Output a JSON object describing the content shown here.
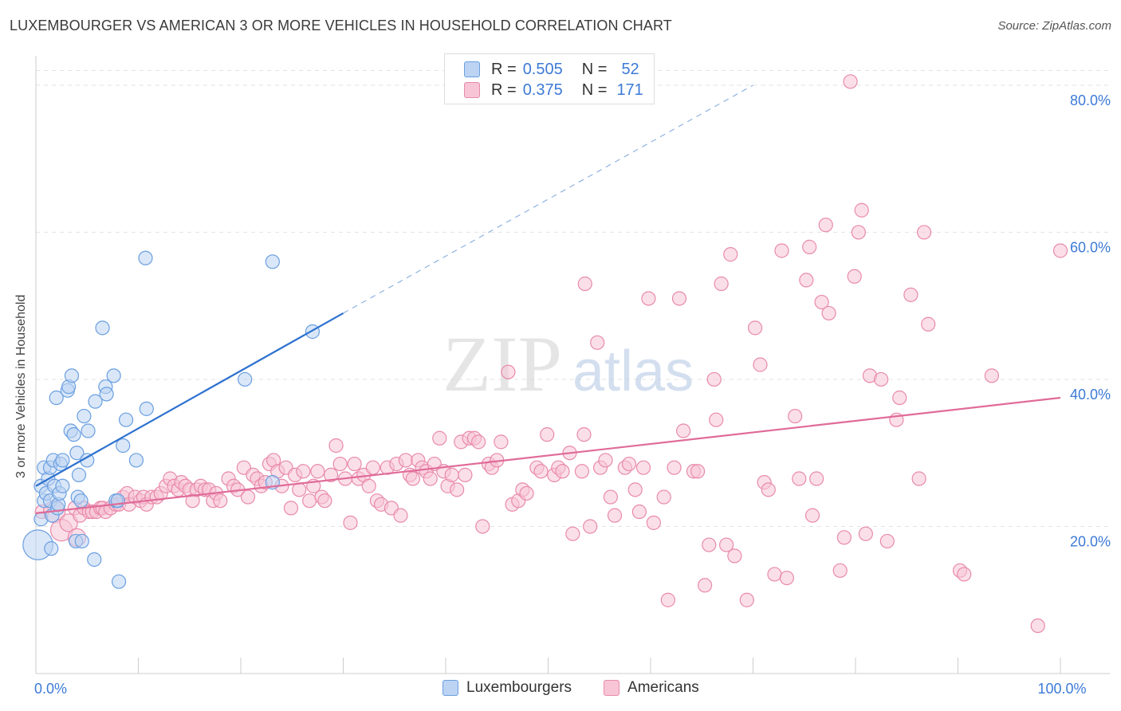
{
  "title": "LUXEMBOURGER VS AMERICAN 3 OR MORE VEHICLES IN HOUSEHOLD CORRELATION CHART",
  "source": "Source: ZipAtlas.com",
  "watermark": {
    "zip": "ZIP",
    "atlas": "atlas"
  },
  "legend_top": {
    "rows": [
      {
        "r_label": "R =",
        "r_value": "0.505",
        "n_label": "N =",
        "n_value": "52",
        "color": "#6a9fe0",
        "fill": "#bcd3f3"
      },
      {
        "r_label": "R =",
        "r_value": "0.375",
        "n_label": "N =",
        "n_value": "171",
        "color": "#e88aab",
        "fill": "#f7c5d6"
      }
    ]
  },
  "legend_bottom": {
    "items": [
      {
        "label": "Luxembourgers",
        "color": "#6a9fe0",
        "fill": "#bcd3f3"
      },
      {
        "label": "Americans",
        "color": "#e88aab",
        "fill": "#f7c5d6"
      }
    ]
  },
  "chart_data": {
    "type": "scatter",
    "title": "LUXEMBOURGER VS AMERICAN 3 OR MORE VEHICLES IN HOUSEHOLD CORRELATION CHART",
    "xlabel": "",
    "ylabel": "3 or more Vehicles in Household",
    "xlim": [
      0,
      100
    ],
    "ylim": [
      0,
      84
    ],
    "x_tick_labels": [
      {
        "value": 0,
        "label": "0.0%"
      },
      {
        "value": 100,
        "label": "100.0%"
      }
    ],
    "y_tick_labels": [
      {
        "value": 20,
        "label": "20.0%"
      },
      {
        "value": 40,
        "label": "40.0%"
      },
      {
        "value": 60,
        "label": "60.0%"
      },
      {
        "value": 80,
        "label": "80.0%"
      }
    ],
    "grid": true,
    "legend_position": "bottom",
    "series": [
      {
        "name": "Luxembourgers",
        "color": "#6a9fe0",
        "fill": "#bcd3f3",
        "trend": {
          "x": [
            0,
            30
          ],
          "y": [
            25.5,
            49
          ],
          "dashed_extension_to": [
            70,
            80
          ]
        },
        "points": [
          [
            0.2,
            17.5,
            2.2
          ],
          [
            0.5,
            21,
            1
          ],
          [
            0.5,
            25.5,
            1
          ],
          [
            0.8,
            23.5,
            1
          ],
          [
            0.8,
            28,
            1
          ],
          [
            1.0,
            24.5,
            1
          ],
          [
            1.2,
            26.5,
            1
          ],
          [
            1.4,
            23.5,
            1
          ],
          [
            1.4,
            28,
            1
          ],
          [
            1.5,
            17,
            1
          ],
          [
            1.6,
            21.5,
            1
          ],
          [
            1.7,
            29,
            1
          ],
          [
            1.8,
            25.5,
            1
          ],
          [
            2.0,
            37.5,
            1
          ],
          [
            2.1,
            22.5,
            1
          ],
          [
            2.2,
            23,
            1
          ],
          [
            2.3,
            24.5,
            1
          ],
          [
            2.4,
            28.5,
            1
          ],
          [
            2.6,
            25.5,
            1
          ],
          [
            2.6,
            29,
            1
          ],
          [
            3.1,
            38.5,
            1
          ],
          [
            3.2,
            39,
            1
          ],
          [
            3.4,
            33,
            1
          ],
          [
            3.5,
            40.5,
            1
          ],
          [
            3.7,
            32.5,
            1
          ],
          [
            3.9,
            18,
            1
          ],
          [
            4.0,
            30,
            1
          ],
          [
            4.1,
            24,
            1
          ],
          [
            4.2,
            27,
            1
          ],
          [
            4.4,
            23.5,
            1
          ],
          [
            4.5,
            18,
            1
          ],
          [
            4.7,
            35,
            1
          ],
          [
            5.0,
            29,
            1
          ],
          [
            5.1,
            33,
            1
          ],
          [
            5.7,
            15.5,
            1
          ],
          [
            5.8,
            37,
            1
          ],
          [
            6.5,
            47,
            1
          ],
          [
            6.8,
            39,
            1
          ],
          [
            6.9,
            38,
            1
          ],
          [
            7.6,
            40.5,
            1
          ],
          [
            7.8,
            23.5,
            1
          ],
          [
            8.1,
            12.5,
            1
          ],
          [
            8.5,
            31,
            1
          ],
          [
            8.8,
            34.5,
            1
          ],
          [
            9.8,
            29,
            1
          ],
          [
            10.8,
            36,
            1
          ],
          [
            10.7,
            56.5,
            1
          ],
          [
            20.4,
            40,
            1
          ],
          [
            23.1,
            56,
            1
          ],
          [
            23.1,
            26,
            1
          ],
          [
            27.0,
            46.5,
            1
          ],
          [
            8.0,
            23.5,
            1
          ]
        ]
      },
      {
        "name": "Americans",
        "color": "#e88aab",
        "fill": "#f7c5d6",
        "trend": {
          "x": [
            0,
            100
          ],
          "y": [
            21.8,
            37.5
          ]
        },
        "points": [
          [
            0.6,
            22,
            1
          ],
          [
            1.8,
            22,
            1.6
          ],
          [
            2.5,
            19.5,
            1.6
          ],
          [
            3.2,
            20.5,
            1.3
          ],
          [
            3.8,
            22.5,
            1
          ],
          [
            4.0,
            18.5,
            1.3
          ],
          [
            4.3,
            21.5,
            1
          ],
          [
            4.7,
            22.5,
            1
          ],
          [
            5.2,
            22,
            1
          ],
          [
            5.5,
            22,
            1
          ],
          [
            5.9,
            22,
            1
          ],
          [
            6.3,
            22.5,
            1
          ],
          [
            6.5,
            22.5,
            1
          ],
          [
            6.8,
            22,
            1
          ],
          [
            7.3,
            22.5,
            1
          ],
          [
            7.8,
            23,
            1
          ],
          [
            8.1,
            23,
            1
          ],
          [
            8.5,
            24,
            1
          ],
          [
            8.9,
            24.5,
            1
          ],
          [
            9.1,
            23,
            1
          ],
          [
            9.7,
            24,
            1
          ],
          [
            10.2,
            23.5,
            1
          ],
          [
            10.5,
            24,
            1
          ],
          [
            10.8,
            23,
            1
          ],
          [
            11.3,
            24,
            1
          ],
          [
            11.8,
            24,
            1
          ],
          [
            12.2,
            24.5,
            1
          ],
          [
            12.7,
            25.5,
            1
          ],
          [
            13.1,
            26.5,
            1
          ],
          [
            13.5,
            25.5,
            1
          ],
          [
            13.9,
            25,
            1
          ],
          [
            14.2,
            26,
            1
          ],
          [
            14.6,
            25.5,
            1
          ],
          [
            15.0,
            25,
            1
          ],
          [
            15.3,
            23.5,
            1
          ],
          [
            15.7,
            25,
            1
          ],
          [
            16.1,
            25.5,
            1
          ],
          [
            16.5,
            25,
            1
          ],
          [
            16.9,
            25,
            1
          ],
          [
            17.3,
            23.5,
            1
          ],
          [
            17.6,
            24.5,
            1
          ],
          [
            18.0,
            23.5,
            1
          ],
          [
            18.8,
            26.5,
            1
          ],
          [
            19.3,
            25.5,
            1
          ],
          [
            19.7,
            25,
            1
          ],
          [
            20.3,
            28,
            1
          ],
          [
            20.7,
            24,
            1
          ],
          [
            21.2,
            27,
            1
          ],
          [
            21.6,
            26.5,
            1
          ],
          [
            22.0,
            25.5,
            1
          ],
          [
            22.4,
            26,
            1
          ],
          [
            22.8,
            28.5,
            1
          ],
          [
            23.2,
            29,
            1
          ],
          [
            23.6,
            27.5,
            1
          ],
          [
            24.0,
            25.5,
            1
          ],
          [
            24.4,
            28,
            1
          ],
          [
            24.9,
            22.5,
            1
          ],
          [
            25.3,
            27,
            1
          ],
          [
            25.7,
            25,
            1
          ],
          [
            26.1,
            27.5,
            1
          ],
          [
            26.7,
            23.5,
            1
          ],
          [
            27.1,
            25.5,
            1
          ],
          [
            27.5,
            27.5,
            1
          ],
          [
            27.9,
            24,
            1
          ],
          [
            28.2,
            23.5,
            1
          ],
          [
            28.8,
            27,
            1
          ],
          [
            29.3,
            31,
            1
          ],
          [
            29.7,
            28.5,
            1
          ],
          [
            30.2,
            26.5,
            1
          ],
          [
            30.7,
            20.5,
            1
          ],
          [
            31.1,
            28.5,
            1
          ],
          [
            31.5,
            26.5,
            1
          ],
          [
            32.0,
            27,
            1
          ],
          [
            32.5,
            25.5,
            1
          ],
          [
            32.9,
            28,
            1
          ],
          [
            33.3,
            23.5,
            1
          ],
          [
            33.7,
            23,
            1
          ],
          [
            34.3,
            28,
            1
          ],
          [
            34.7,
            22.5,
            1
          ],
          [
            35.2,
            28.5,
            1
          ],
          [
            35.6,
            21.5,
            1
          ],
          [
            36.1,
            29,
            1
          ],
          [
            36.5,
            27,
            1
          ],
          [
            36.8,
            26.5,
            1
          ],
          [
            37.3,
            29,
            1
          ],
          [
            37.7,
            28,
            1
          ],
          [
            38.1,
            27.5,
            1
          ],
          [
            38.5,
            26.5,
            1
          ],
          [
            38.9,
            28.5,
            1
          ],
          [
            39.4,
            32,
            1
          ],
          [
            39.8,
            27.5,
            1
          ],
          [
            40.2,
            25.5,
            1
          ],
          [
            40.6,
            27,
            1
          ],
          [
            41.1,
            25,
            1
          ],
          [
            41.5,
            31.5,
            1
          ],
          [
            41.9,
            27,
            1
          ],
          [
            42.3,
            32,
            1
          ],
          [
            42.8,
            32,
            1
          ],
          [
            43.2,
            31.5,
            1
          ],
          [
            43.6,
            20,
            1
          ],
          [
            44.2,
            28.5,
            1
          ],
          [
            44.5,
            28,
            1
          ],
          [
            45.0,
            29,
            1
          ],
          [
            45.4,
            31.5,
            1
          ],
          [
            46.1,
            41,
            1
          ],
          [
            46.5,
            23,
            1
          ],
          [
            47.1,
            23.5,
            1
          ],
          [
            47.5,
            25,
            1
          ],
          [
            47.9,
            24.5,
            1
          ],
          [
            48.9,
            28,
            1
          ],
          [
            49.3,
            27.5,
            1
          ],
          [
            49.9,
            32.5,
            1
          ],
          [
            50.6,
            27,
            1
          ],
          [
            51.0,
            28,
            1
          ],
          [
            51.4,
            27.5,
            1
          ],
          [
            52.1,
            30,
            1
          ],
          [
            52.4,
            19,
            1
          ],
          [
            53.3,
            27.5,
            1
          ],
          [
            53.5,
            32.5,
            1
          ],
          [
            53.6,
            53,
            1
          ],
          [
            54.1,
            20,
            1
          ],
          [
            54.8,
            45,
            1
          ],
          [
            55.1,
            28,
            1
          ],
          [
            55.6,
            29,
            1
          ],
          [
            56.1,
            24,
            1
          ],
          [
            56.5,
            21.5,
            1
          ],
          [
            57.5,
            28,
            1
          ],
          [
            57.9,
            28.5,
            1
          ],
          [
            58.5,
            25,
            1
          ],
          [
            58.9,
            22,
            1
          ],
          [
            59.3,
            28,
            1
          ],
          [
            59.8,
            51,
            1
          ],
          [
            60.3,
            20.5,
            1
          ],
          [
            61.3,
            24,
            1
          ],
          [
            61.7,
            10,
            1
          ],
          [
            62.3,
            28,
            1
          ],
          [
            62.8,
            51,
            1
          ],
          [
            63.2,
            33,
            1
          ],
          [
            64.2,
            27.5,
            1
          ],
          [
            64.6,
            27.5,
            1
          ],
          [
            65.3,
            12,
            1
          ],
          [
            65.7,
            17.5,
            1
          ],
          [
            66.2,
            40,
            1
          ],
          [
            66.4,
            34.5,
            1
          ],
          [
            66.9,
            53,
            1
          ],
          [
            67.4,
            17.5,
            1
          ],
          [
            67.8,
            57,
            1
          ],
          [
            68.2,
            16,
            1
          ],
          [
            69.4,
            10,
            1
          ],
          [
            70.2,
            47,
            1
          ],
          [
            70.7,
            42,
            1
          ],
          [
            71.1,
            26,
            1
          ],
          [
            71.5,
            25,
            1
          ],
          [
            72.1,
            13.5,
            1
          ],
          [
            72.8,
            57.5,
            1
          ],
          [
            73.3,
            13,
            1
          ],
          [
            74.1,
            35,
            1
          ],
          [
            74.5,
            26.5,
            1
          ],
          [
            75.2,
            53.5,
            1
          ],
          [
            75.5,
            58,
            1
          ],
          [
            75.8,
            21.5,
            1
          ],
          [
            76.2,
            26.5,
            1
          ],
          [
            76.7,
            50.5,
            1
          ],
          [
            77.1,
            61,
            1
          ],
          [
            77.4,
            49,
            1
          ],
          [
            78.5,
            14,
            1
          ],
          [
            78.9,
            18.5,
            1
          ],
          [
            79.5,
            80.5,
            1
          ],
          [
            79.9,
            54,
            1
          ],
          [
            80.3,
            60,
            1
          ],
          [
            80.6,
            63,
            1
          ],
          [
            81.0,
            19,
            1
          ],
          [
            81.4,
            40.5,
            1
          ],
          [
            82.5,
            40,
            1
          ],
          [
            83.1,
            18,
            1
          ],
          [
            84.0,
            34.5,
            1
          ],
          [
            84.3,
            37.5,
            1
          ],
          [
            85.4,
            51.5,
            1
          ],
          [
            86.2,
            26.5,
            1
          ],
          [
            86.7,
            60,
            1
          ],
          [
            87.1,
            47.5,
            1
          ],
          [
            90.2,
            14,
            1
          ],
          [
            90.6,
            13.5,
            1
          ],
          [
            93.3,
            40.5,
            1
          ],
          [
            97.8,
            6.5,
            1
          ],
          [
            100.0,
            57.5,
            1
          ]
        ]
      }
    ]
  }
}
